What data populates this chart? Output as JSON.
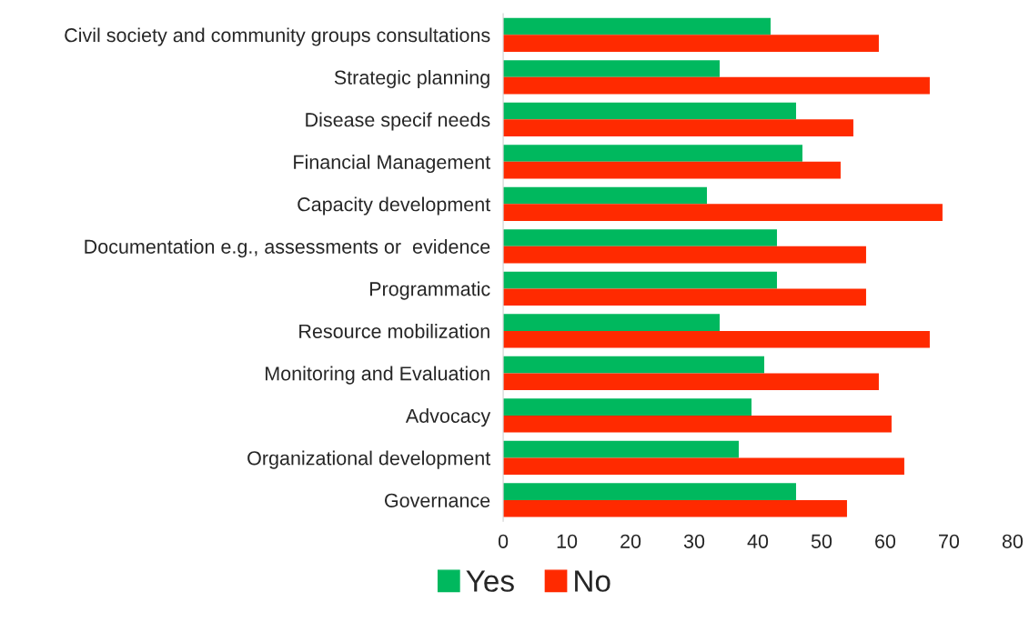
{
  "chart_data": {
    "type": "bar",
    "orientation": "horizontal",
    "categories": [
      "Civil society and community groups consultations",
      "Strategic planning",
      "Disease specif needs",
      "Financial Management",
      "Capacity development",
      "Documentation e.g., assessments or  evidence",
      "Programmatic",
      "Resource mobilization",
      "Monitoring and Evaluation",
      "Advocacy",
      "Organizational development",
      "Governance"
    ],
    "series": [
      {
        "name": "Yes",
        "color": "#00b85e",
        "values": [
          42,
          34,
          46,
          47,
          32,
          43,
          43,
          34,
          41,
          39,
          37,
          46
        ]
      },
      {
        "name": "No",
        "color": "#ff2a00",
        "values": [
          59,
          67,
          55,
          53,
          69,
          57,
          57,
          67,
          59,
          61,
          63,
          54
        ]
      }
    ],
    "xlim": [
      0,
      80
    ],
    "xticks": [
      0,
      10,
      20,
      30,
      40,
      50,
      60,
      70,
      80
    ],
    "grid": false,
    "legend": "bottom"
  }
}
